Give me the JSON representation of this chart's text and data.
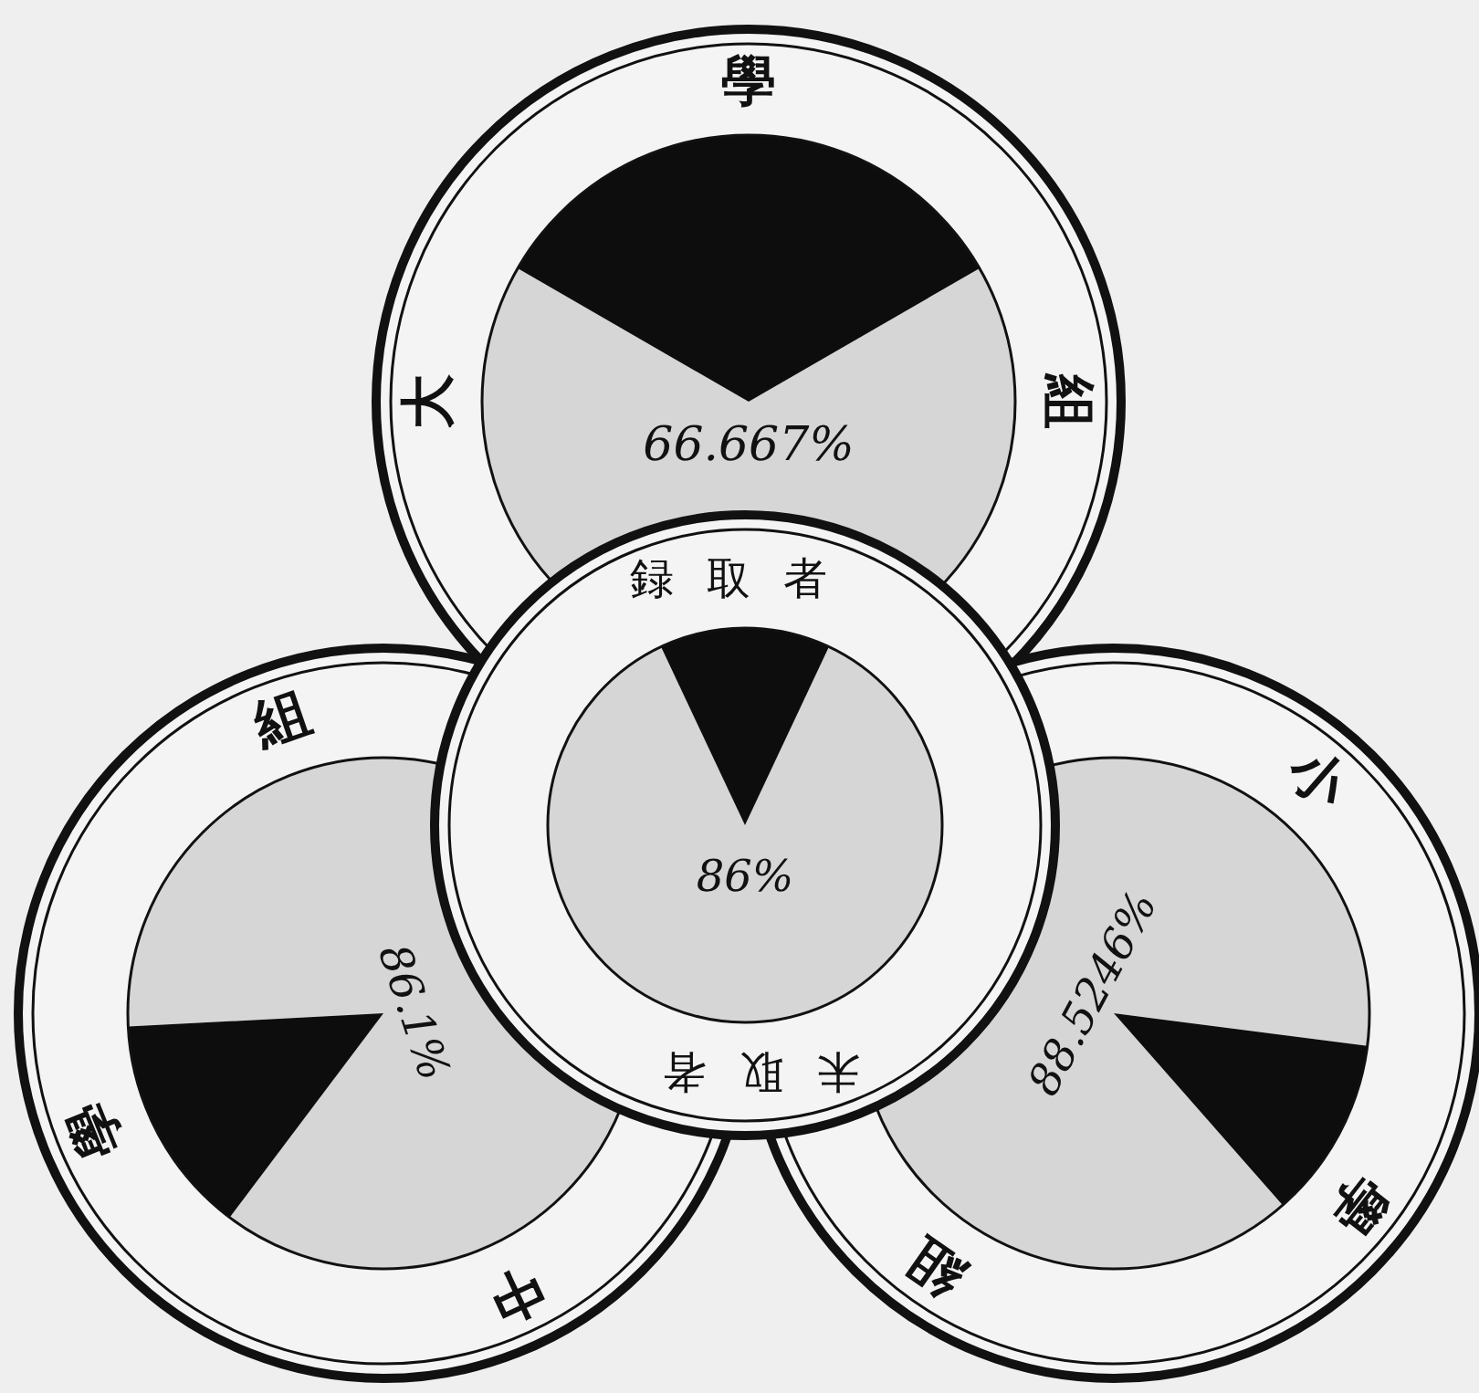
{
  "chart_data": [
    {
      "type": "pie",
      "categories": [
        null,
        null
      ],
      "values": [
        66.667,
        33.333
      ],
      "colors": [
        "#d6d6d6",
        "#0d0d0d"
      ],
      "value_labels": [
        "66.667%",
        null
      ],
      "annotations": [
        "大",
        "學",
        "組"
      ]
    },
    {
      "type": "pie",
      "categories": [
        null,
        null
      ],
      "values": [
        86,
        14
      ],
      "colors": [
        "#d6d6d6",
        "#0d0d0d"
      ],
      "value_labels": [
        "86%",
        null
      ],
      "annotations": [
        "録取者",
        "未取者"
      ]
    },
    {
      "type": "pie",
      "categories": [
        null,
        null
      ],
      "values": [
        86.1,
        13.9
      ],
      "colors": [
        "#d6d6d6",
        "#0d0d0d"
      ],
      "value_labels": [
        "86.1%",
        null
      ],
      "annotations": [
        "中",
        "學",
        "組"
      ]
    },
    {
      "type": "pie",
      "categories": [
        null,
        null
      ],
      "values": [
        88.5246,
        11.4754
      ],
      "colors": [
        "#d6d6d6",
        "#0d0d0d"
      ],
      "value_labels": [
        "88.5246%",
        null
      ],
      "annotations": [
        "小",
        "學",
        "組"
      ]
    }
  ]
}
